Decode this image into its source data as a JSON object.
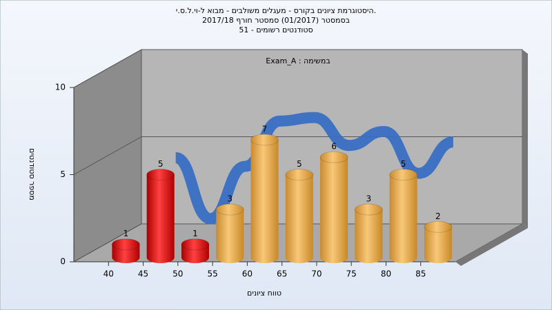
{
  "chart_data": {
    "type": "bar",
    "title": "היסטוגרמת ציונים בקורס - מעגלים משולבים - מבוא ל-וי.ל.ס.י.",
    "subtitle": "בסמסטר  (01/2017)  סמסטר חורף 2017/18",
    "subtitle2": "סטודנטים רשומים - 51",
    "annotation": "Exam_A : במשימה",
    "y_label": "מספר סטודנטים",
    "x_label": "טווח ציונים",
    "x": [
      42.5,
      47.5,
      52.5,
      57.5,
      62.5,
      67.5,
      72.5,
      77.5,
      82.5,
      87.5
    ],
    "values": [
      1,
      5,
      1,
      3,
      7,
      5,
      6,
      3,
      5,
      2
    ],
    "colors": [
      "red",
      "red",
      "red",
      "orange",
      "orange",
      "orange",
      "orange",
      "orange",
      "orange",
      "orange"
    ],
    "curve": [
      null,
      5.5,
      2,
      5,
      7.6,
      7.8,
      6.2,
      7,
      4.6,
      6.4
    ],
    "curve_color": "#3a6fc4",
    "xlim": [
      35,
      90
    ],
    "xticks": [
      40,
      45,
      50,
      55,
      60,
      65,
      70,
      75,
      80,
      85
    ],
    "ylim": [
      0,
      10
    ],
    "yticks": [
      0,
      5,
      10
    ],
    "grid": true
  }
}
